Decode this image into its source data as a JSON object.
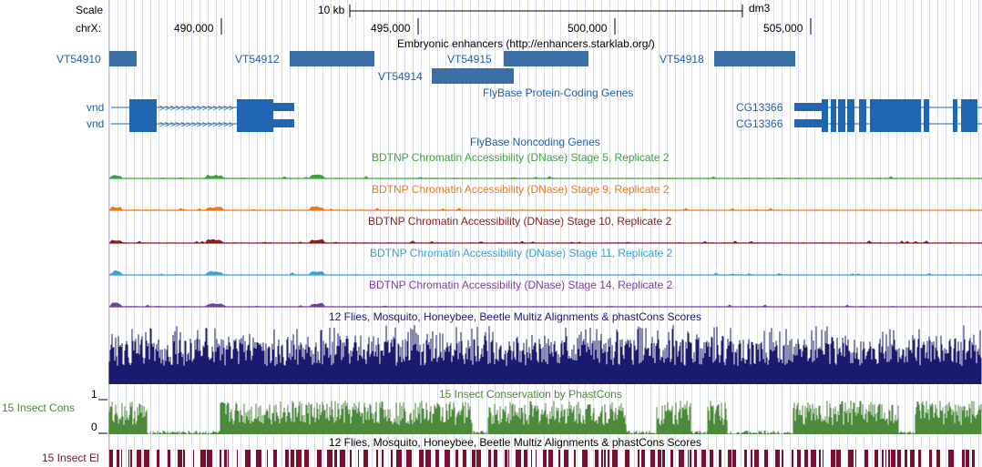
{
  "ruler": {
    "scale_label": "Scale",
    "chrom_label": "chrX:",
    "scale_bar_label": "10 kb",
    "assembly": "dm3",
    "positions": [
      "490,000",
      "495,000",
      "500,000",
      "505,000"
    ]
  },
  "tracks": {
    "enhancers": {
      "title": "Embryonic enhancers (http://enhancers.starklab.org/)",
      "items": [
        "VT54910",
        "VT54912",
        "VT54915",
        "VT54914",
        "VT54918"
      ]
    },
    "flybase_coding": {
      "title": "FlyBase Protein-Coding Genes",
      "left_genes": [
        "vnd",
        "vnd"
      ],
      "right_genes": [
        "CG13366",
        "CG13366"
      ]
    },
    "flybase_noncoding": {
      "title": "FlyBase Noncoding Genes"
    },
    "dnase": [
      {
        "title": "BDTNP Chromatin Accessibility (DNase) Stage 5, Replicate 2",
        "color": "#3aa53a"
      },
      {
        "title": "BDTNP Chromatin Accessibility (DNase) Stage 9, Replicate 2",
        "color": "#e87a1f"
      },
      {
        "title": "BDTNP Chromatin Accessibility (DNase) Stage 10, Replicate 2",
        "color": "#8b1a1a"
      },
      {
        "title": "BDTNP Chromatin Accessibility (DNase) Stage 11, Replicate 2",
        "color": "#3aa0d0"
      },
      {
        "title": "BDTNP Chromatin Accessibility (DNase) Stage 14, Replicate 2",
        "color": "#7a3fa0"
      }
    ],
    "multiz": {
      "title": "12 Flies, Mosquito, Honeybee, Beetle Multiz Alignments & phastCons Scores",
      "color": "#1a1a6e"
    },
    "insect_cons": {
      "title": "15 Insect Conservation by PhastCons",
      "side_label": "15 Insect Cons",
      "y_max": "1",
      "y_min": "0",
      "color": "#4a8a3a"
    },
    "multiz2": {
      "title": "12 Flies, Mosquito, Honeybee, Beetle Multiz Alignments & phastCons Scores"
    },
    "insect_el": {
      "side_label": "15 Insect El",
      "color": "#7a1030"
    }
  }
}
